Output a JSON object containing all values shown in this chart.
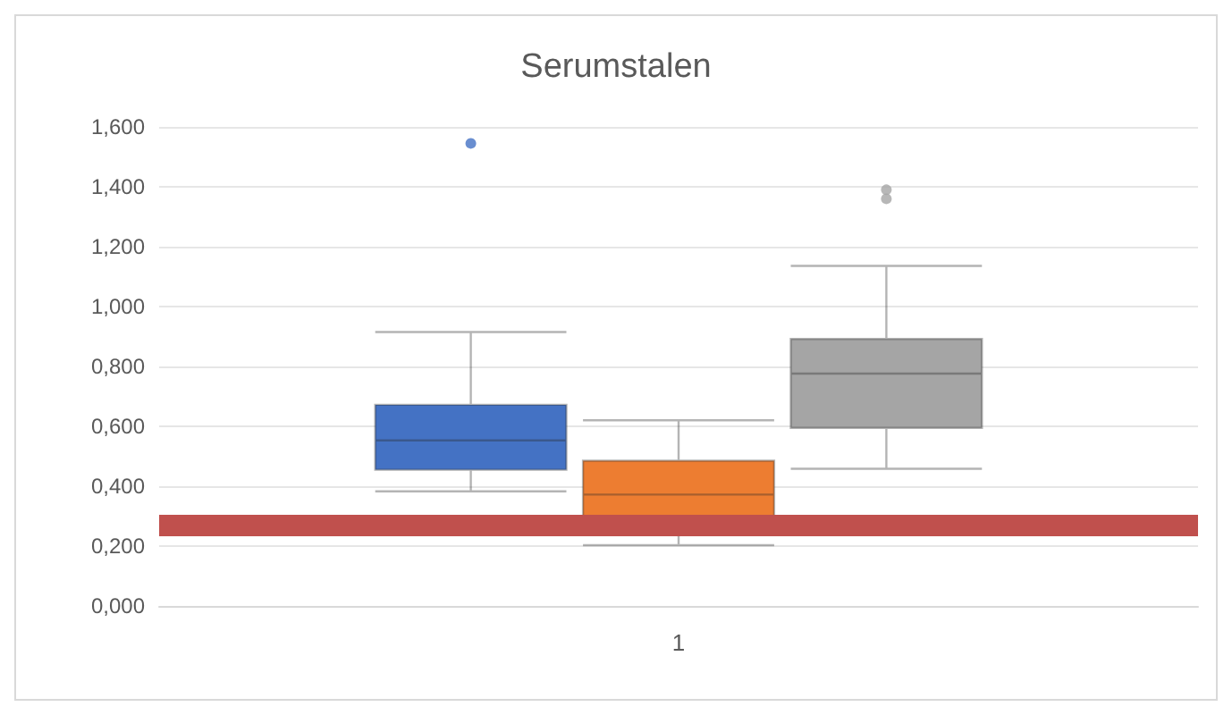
{
  "chart_data": {
    "type": "box",
    "title": "Serumstalen",
    "categories": [
      "1"
    ],
    "series": [
      {
        "color": "#4472c4",
        "boxes": [
          {
            "low": 0.383,
            "q1": 0.455,
            "median": 0.553,
            "q3": 0.672,
            "high": 0.915,
            "outliers": [
              1.545
            ]
          }
        ]
      },
      {
        "color": "#ed7d31",
        "boxes": [
          {
            "low": 0.203,
            "q1": 0.3,
            "median": 0.372,
            "q3": 0.485,
            "high": 0.62
          }
        ]
      },
      {
        "color": "#a5a5a5",
        "boxes": [
          {
            "low": 0.458,
            "q1": 0.595,
            "median": 0.776,
            "q3": 0.892,
            "high": 1.136,
            "outliers": [
              1.39,
              1.36
            ]
          }
        ]
      }
    ],
    "ylim": [
      0,
      1.6
    ],
    "yticks": [
      {
        "value": 0,
        "label": "0,000"
      },
      {
        "value": 0.2,
        "label": "0,200"
      },
      {
        "value": 0.4,
        "label": "0,400"
      },
      {
        "value": 0.6,
        "label": "0,600"
      },
      {
        "value": 0.8,
        "label": "0,800"
      },
      {
        "value": 1,
        "label": "1,000"
      },
      {
        "value": 1.2,
        "label": "1,200"
      },
      {
        "value": 1.4,
        "label": "1,400"
      },
      {
        "value": 1.6,
        "label": "1,600"
      }
    ],
    "grid": "y",
    "ref_lines": [
      {
        "axis": "y",
        "value": 0.272,
        "color": "#c0504d",
        "line_style": "solid"
      }
    ]
  }
}
